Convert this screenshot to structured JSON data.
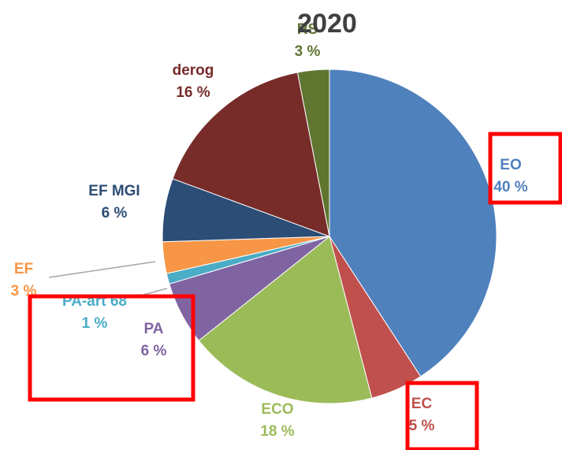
{
  "chart_data": {
    "type": "pie",
    "title": "2020",
    "categories": [
      "EO",
      "EC",
      "ECO",
      "PA",
      "PA-art 68",
      "EF",
      "EF MGI",
      "derog",
      "RS"
    ],
    "values": [
      40,
      5,
      18,
      6,
      1,
      3,
      6,
      16,
      3
    ],
    "value_labels": [
      "40 %",
      "5 %",
      "18 %",
      "6 %",
      "1 %",
      "3 %",
      "6 %",
      "16 %",
      "3 %"
    ],
    "colors": [
      "#4f81bd",
      "#c0504d",
      "#9bbb59",
      "#8064a2",
      "#4bacc6",
      "#f79646",
      "#2c4d75",
      "#772c2a",
      "#5f7530"
    ]
  }
}
